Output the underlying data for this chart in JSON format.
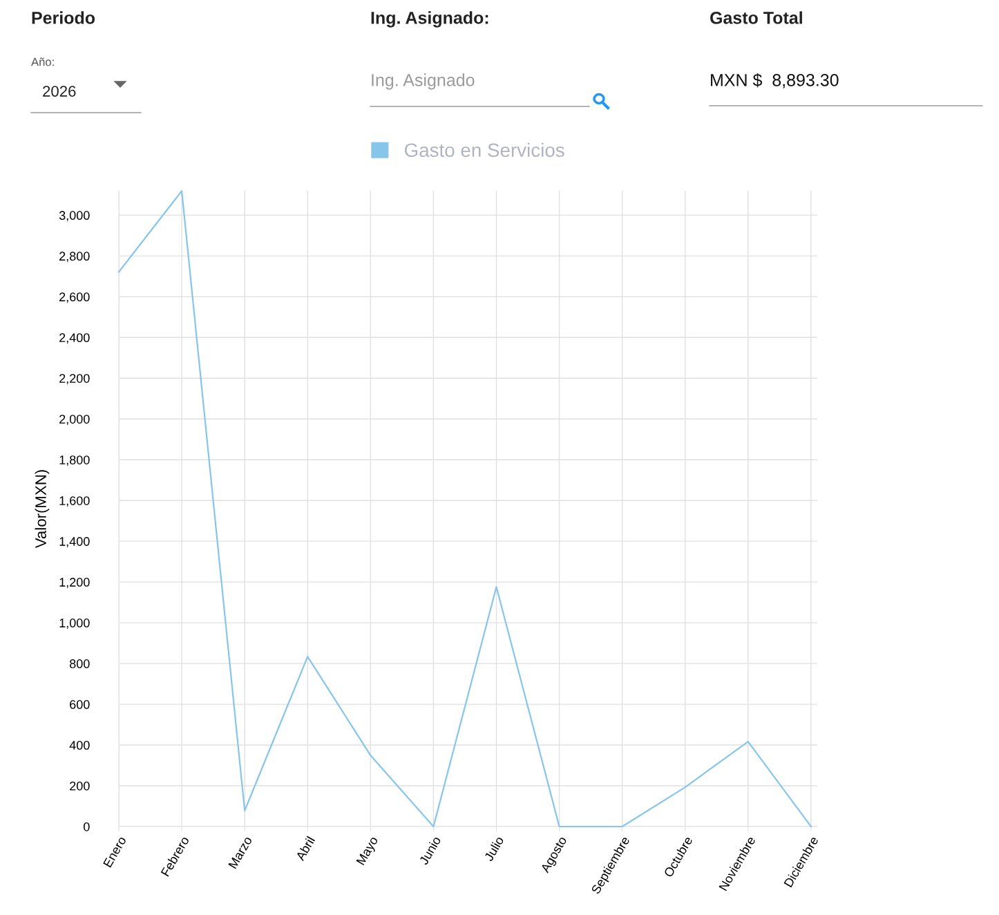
{
  "chart_data": {
    "type": "line",
    "categories": [
      "Enero",
      "Febrero",
      "Marzo",
      "Abril",
      "Mayo",
      "Junio",
      "Julio",
      "Agosto",
      "Septiembre",
      "Octubre",
      "Noviembre",
      "Diciembre"
    ],
    "series": [
      {
        "name": "Gasto en Servicios",
        "color": "#87c6ea",
        "values": [
          2722,
          3119,
          78,
          834,
          349,
          0,
          1176,
          0,
          0,
          193,
          417,
          0
        ]
      }
    ],
    "ylabel": "Valor(MXN)",
    "ylim": [
      0,
      3120
    ],
    "yticks": [
      0,
      200,
      400,
      600,
      800,
      {
        "value": 1000,
        "label": "1,000"
      },
      {
        "value": 1200,
        "label": "1,200"
      },
      {
        "value": 1400,
        "label": "1,400"
      },
      {
        "value": 1600,
        "label": "1,600"
      },
      {
        "value": 1800,
        "label": "1,800"
      },
      {
        "value": 2000,
        "label": "2,000"
      },
      {
        "value": 2200,
        "label": "2,200"
      },
      {
        "value": 2400,
        "label": "2,400"
      },
      {
        "value": 2600,
        "label": "2,600"
      },
      {
        "value": 2800,
        "label": "2,800"
      },
      {
        "value": 3000,
        "label": "3,000"
      }
    ],
    "grid": true,
    "legend": "top",
    "marker": "none",
    "line_style": "solid",
    "annotations": [
      "Periodo",
      "Año:",
      "2026",
      "Ing. Asignado:",
      "Ing. Asignado",
      "Gasto Total",
      "MXN $  8,893.30"
    ]
  }
}
